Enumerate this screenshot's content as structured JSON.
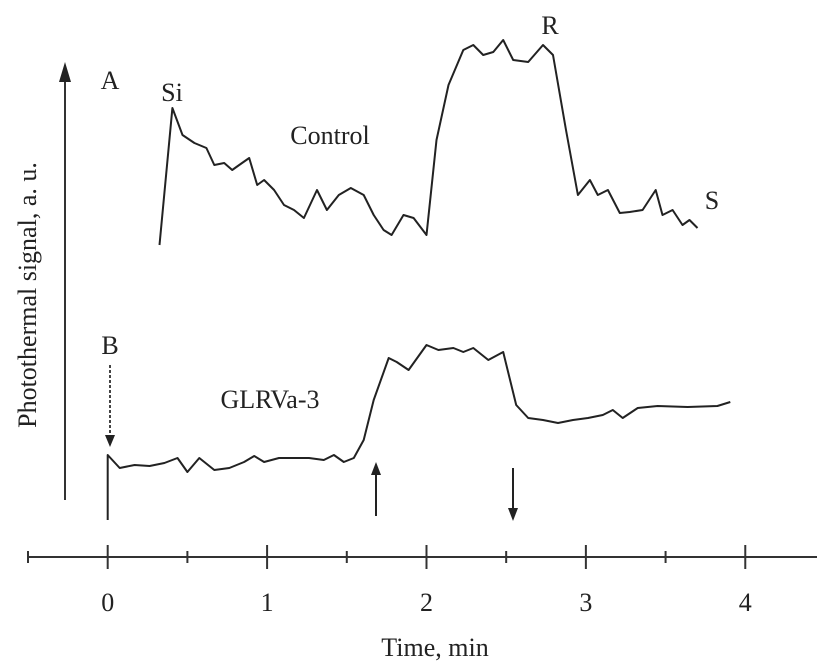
{
  "chart_data": {
    "type": "line",
    "xlabel": "Time, min",
    "ylabel": "Photothermal signal, a. u.",
    "xlim": [
      -0.5,
      4.45
    ],
    "ylim": [
      0,
      110
    ],
    "xticks": [
      0,
      1,
      2,
      3,
      4
    ],
    "xminor_ticks": [
      -0.5,
      0.5,
      1.5,
      2.5,
      3.5
    ],
    "grid": false,
    "series": [
      {
        "name": "Control",
        "color": "#222222",
        "x": [
          0.325,
          0.406,
          0.469,
          0.544,
          0.619,
          0.669,
          0.731,
          0.781,
          0.825,
          0.888,
          0.938,
          0.981,
          1.044,
          1.106,
          1.169,
          1.231,
          1.313,
          1.375,
          1.45,
          1.525,
          1.606,
          1.669,
          1.731,
          1.781,
          1.856,
          1.919,
          2.0,
          2.063,
          2.138,
          2.231,
          2.294,
          2.356,
          2.419,
          2.481,
          2.544,
          2.638,
          2.731,
          2.794,
          2.875,
          2.95,
          3.025,
          3.075,
          3.138,
          3.213,
          3.275,
          3.356,
          3.438,
          3.481,
          3.544,
          3.606,
          3.65,
          3.7
        ],
        "values": [
          62.4,
          89.8,
          84.4,
          82.8,
          81.8,
          78.4,
          78.8,
          77.4,
          78.4,
          79.8,
          74.4,
          75.4,
          73.4,
          70.4,
          69.4,
          67.8,
          73.4,
          69.4,
          72.4,
          73.8,
          72.4,
          68.4,
          65.4,
          64.4,
          68.4,
          67.8,
          64.4,
          83.4,
          94.4,
          101.4,
          102.4,
          100.4,
          101,
          103.4,
          99.4,
          99,
          102.4,
          100.4,
          85.4,
          72.4,
          75.4,
          72.4,
          73.4,
          68.8,
          69,
          69.4,
          73.4,
          68.4,
          69.4,
          66.4,
          67.4,
          65.8
        ]
      },
      {
        "name": "GLRVa-3",
        "color": "#222222",
        "x": [
          0,
          0,
          0.075,
          0.169,
          0.263,
          0.356,
          0.438,
          0.5,
          0.575,
          0.669,
          0.763,
          0.856,
          0.919,
          0.981,
          1.075,
          1.169,
          1.263,
          1.356,
          1.419,
          1.481,
          1.544,
          1.606,
          1.669,
          1.763,
          1.813,
          1.888,
          2,
          2.075,
          2.169,
          2.231,
          2.294,
          2.388,
          2.481,
          2.563,
          2.638,
          2.731,
          2.825,
          2.919,
          3.013,
          3.106,
          3.169,
          3.231,
          3.325,
          3.45,
          3.638,
          3.825,
          3.906
        ],
        "values": [
          7.4,
          20.4,
          17.8,
          18.4,
          18.2,
          18.8,
          19.8,
          17,
          19.8,
          17.4,
          17.8,
          19,
          20.2,
          19,
          19.8,
          19.8,
          19.8,
          19.4,
          20.4,
          19,
          19.8,
          23.4,
          31.4,
          39.8,
          39,
          37.4,
          42.4,
          41.4,
          41.8,
          41,
          41.8,
          39.4,
          41,
          30.4,
          27.8,
          27.4,
          26.8,
          27.4,
          27.8,
          28.4,
          29.4,
          27.8,
          29.8,
          30.2,
          30,
          30.2,
          31
        ]
      }
    ],
    "annotations": [
      "A",
      "Si",
      "R",
      "S",
      "B"
    ]
  }
}
